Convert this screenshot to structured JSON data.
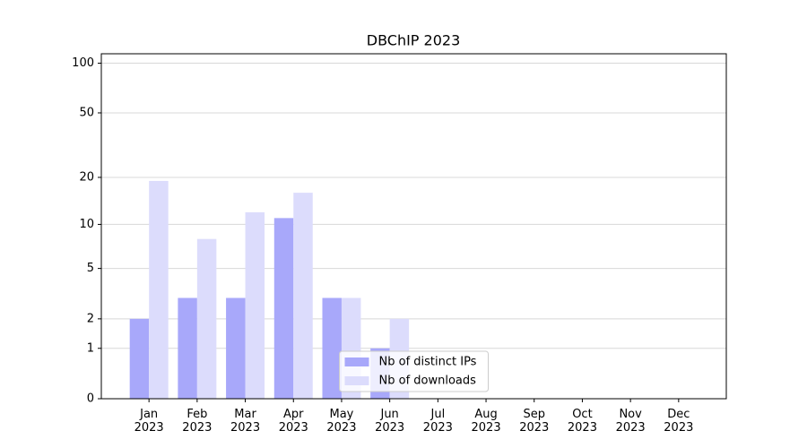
{
  "chart_data": {
    "type": "bar",
    "title": "DBChIP 2023",
    "categories": [
      "Jan 2023",
      "Feb 2023",
      "Mar 2023",
      "Apr 2023",
      "May 2023",
      "Jun 2023",
      "Jul 2023",
      "Aug 2023",
      "Sep 2023",
      "Oct 2023",
      "Nov 2023",
      "Dec 2023"
    ],
    "series": [
      {
        "name": "Nb of distinct IPs",
        "color": "#a8a8fa",
        "values": [
          2,
          3,
          3,
          11,
          3,
          1,
          0,
          0,
          0,
          0,
          0,
          0
        ]
      },
      {
        "name": "Nb of downloads",
        "color": "#dcdcfc",
        "values": [
          19,
          8,
          12,
          16,
          3,
          2,
          0,
          0,
          0,
          0,
          0,
          0
        ]
      }
    ],
    "yscale": "symlog",
    "ylim": [
      0,
      114
    ],
    "yticks": [
      0,
      1,
      2,
      5,
      10,
      20,
      50,
      100
    ],
    "grid": true,
    "legend": "lower center"
  }
}
